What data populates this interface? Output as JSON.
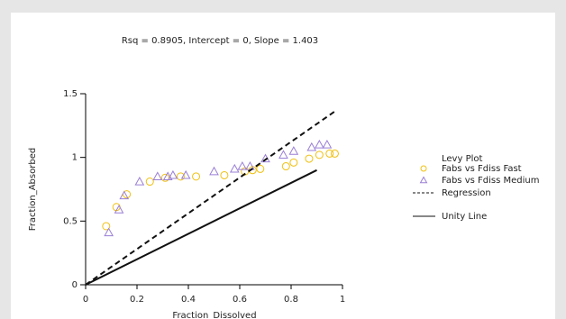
{
  "chart_data": {
    "type": "scatter",
    "title": "Rsq = 0.8905, Intercept = 0, Slope = 1.403",
    "x_label": "Fraction_Dissolved",
    "y_label": "Fraction_Absorbed",
    "legend_title": "Levy Plot",
    "xlim": [
      0,
      1
    ],
    "ylim": [
      0,
      1.5
    ],
    "xticks": [
      0,
      0.2,
      0.4,
      0.6,
      0.8,
      1
    ],
    "yticks": [
      0,
      0.5,
      1,
      1.5
    ],
    "series": [
      {
        "name": "Fabs vs Fdiss Fast",
        "color": "#f0c010",
        "mark": "circle",
        "x": [
          0.08,
          0.12,
          0.16,
          0.25,
          0.31,
          0.37,
          0.43,
          0.54,
          0.62,
          0.65,
          0.68,
          0.78,
          0.81,
          0.87,
          0.91,
          0.95,
          0.97
        ],
        "values": [
          0.46,
          0.61,
          0.71,
          0.81,
          0.84,
          0.85,
          0.85,
          0.86,
          0.89,
          0.9,
          0.91,
          0.93,
          0.96,
          0.99,
          1.02,
          1.03,
          1.03
        ]
      },
      {
        "name": "Fabs vs Fdiss Medium",
        "color": "#9a7fd6",
        "mark": "triangle",
        "x": [
          0.09,
          0.13,
          0.15,
          0.21,
          0.28,
          0.32,
          0.34,
          0.39,
          0.5,
          0.58,
          0.61,
          0.64,
          0.7,
          0.77,
          0.81,
          0.88,
          0.91,
          0.94
        ],
        "values": [
          0.41,
          0.59,
          0.7,
          0.81,
          0.85,
          0.85,
          0.86,
          0.86,
          0.89,
          0.91,
          0.93,
          0.93,
          0.99,
          1.02,
          1.05,
          1.08,
          1.1,
          1.1
        ]
      },
      {
        "name": "Regression",
        "color": "#111111",
        "mark": "dashed",
        "x": [
          0,
          0.97
        ],
        "values": [
          0,
          1.361
        ]
      },
      {
        "name": "Unity Line",
        "color": "#111111",
        "mark": "solid",
        "x": [
          0,
          0.9
        ],
        "values": [
          0,
          0.9
        ]
      }
    ]
  }
}
